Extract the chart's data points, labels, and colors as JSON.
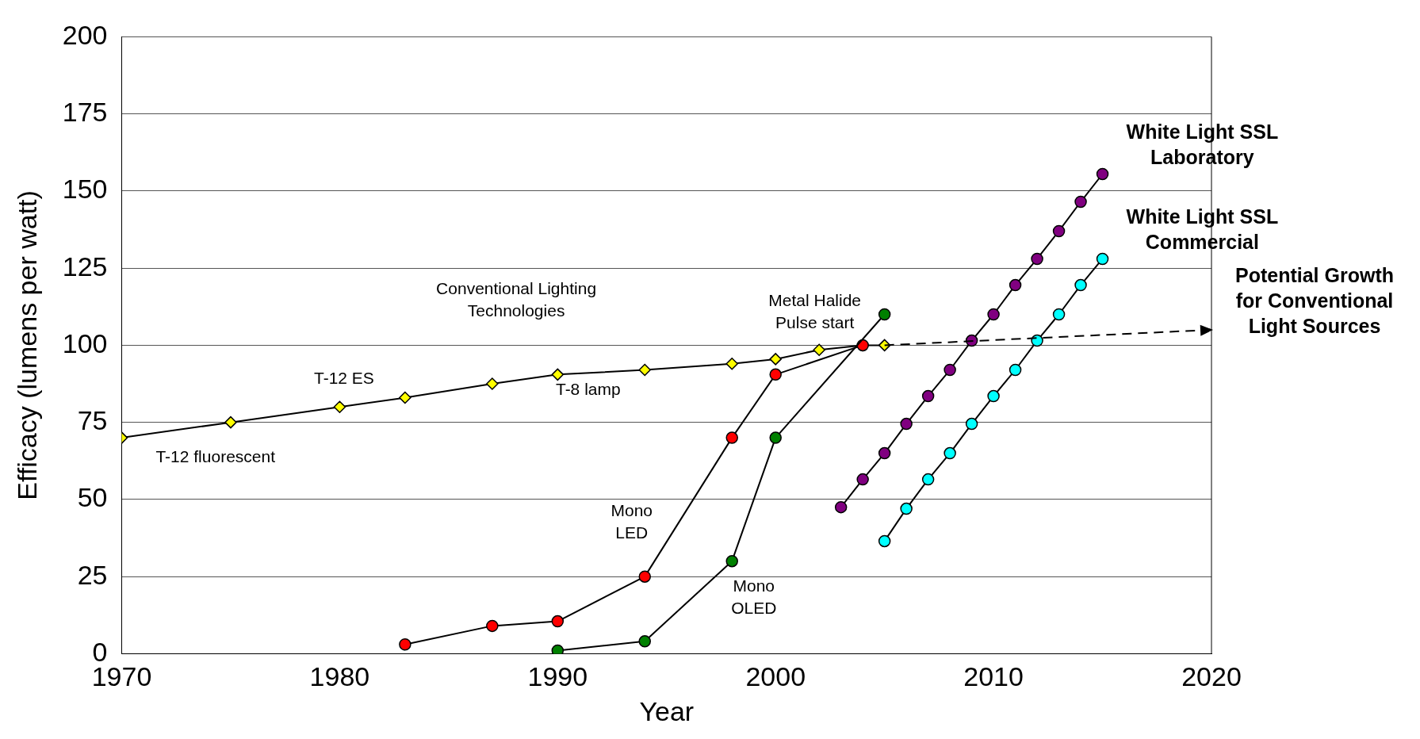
{
  "chart_data": {
    "type": "line",
    "xlabel": "Year",
    "ylabel": "Efficacy (lumens per watt)",
    "xlim": [
      1970,
      2020
    ],
    "xticks": [
      1970,
      1980,
      1990,
      2000,
      2010,
      2020
    ],
    "ylim": [
      0,
      200
    ],
    "yticks": [
      0,
      25,
      50,
      75,
      100,
      125,
      150,
      175,
      200
    ],
    "grid": "y",
    "legend": false,
    "line_style": "solid",
    "series": [
      {
        "color": "#ffff00",
        "marker": "diamond",
        "x": [
          1970,
          1975,
          1980,
          1983,
          1987,
          1990,
          1994,
          1998,
          2000,
          2002,
          2004,
          2005
        ],
        "values": [
          70,
          75,
          80,
          83,
          87.5,
          90.5,
          92,
          94,
          95.5,
          98.5,
          100,
          100
        ]
      },
      {
        "color": "#ff0000",
        "marker": "circle",
        "x": [
          1983,
          1987,
          1990,
          1994,
          1998,
          2000,
          2004
        ],
        "values": [
          3,
          9,
          10.5,
          25,
          70,
          90.5,
          100
        ]
      },
      {
        "color": "#008000",
        "marker": "circle",
        "x": [
          1990,
          1994,
          1998,
          2000,
          2005
        ],
        "values": [
          1,
          4,
          30,
          70,
          110
        ]
      },
      {
        "name": "White Light SSL Laboratory",
        "color": "#800080",
        "marker": "circle",
        "x": [
          2003,
          2004,
          2005,
          2006,
          2007,
          2008,
          2009,
          2010,
          2011,
          2012,
          2013,
          2014,
          2015
        ],
        "values": [
          47.5,
          56.5,
          65,
          74.5,
          83.5,
          92,
          101.5,
          110,
          119.5,
          128,
          137,
          146.5,
          155.5
        ]
      },
      {
        "name": "White Light SSL Commercial",
        "color": "#00ffff",
        "marker": "circle",
        "x": [
          2005,
          2006,
          2007,
          2008,
          2009,
          2010,
          2011,
          2012,
          2013,
          2014,
          2015
        ],
        "values": [
          36.5,
          47,
          56.5,
          65,
          74.5,
          83.5,
          92,
          101.5,
          110,
          119.5,
          128
        ]
      },
      {
        "name": "Potential Growth for Conventional Light Sources",
        "color": "#000000",
        "marker": "none",
        "line_style": "dashed",
        "x": [
          2005,
          2020
        ],
        "values": [
          100,
          105
        ]
      }
    ],
    "annotations": [
      "T-12 fluorescent",
      "T-12 ES",
      "Conventional Lighting\nTechnologies",
      "T-8 lamp",
      "Metal Halide\nPulse start",
      "Mono\nLED",
      "Mono\nOLED"
    ]
  }
}
